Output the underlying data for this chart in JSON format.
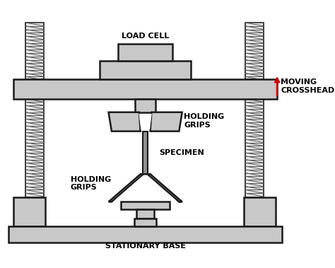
{
  "bg_color": "#ffffff",
  "gray_fill": "#c8c8c8",
  "gray_edge": "#1a1a1a",
  "screw_fill": "#e8e8e8",
  "text_color": "#000000",
  "red_color": "#cc0000",
  "load_cell_label": "LOAD CELL",
  "moving_crosshead_label": "MOVING\nCROSSHEAD",
  "holding_grips_label_top": "HOLDING\nGRIPS",
  "holding_grips_label_bottom": "HOLDING\nGRIPS",
  "specimen_label": "SPECIMEN",
  "stationary_base_label": "STATIONARY BASE",
  "figsize": [
    4.74,
    3.79
  ],
  "dpi": 100
}
